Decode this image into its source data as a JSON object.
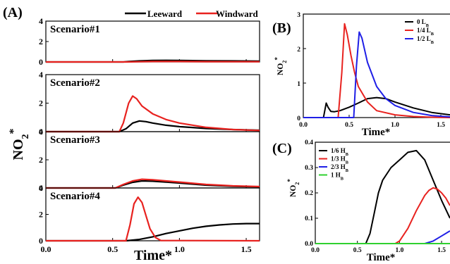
{
  "chart_data": [
    {
      "panel": "(A)",
      "type": "line",
      "ylabel": "NO",
      "ylabel_sub": "2",
      "ylabel_sup": "*",
      "xlabel": "Time*",
      "xlim": [
        0.0,
        1.6
      ],
      "xticks": [
        "0.0",
        "0.5",
        "1.0",
        "1.5"
      ],
      "legend": {
        "position": "top",
        "entries": [
          {
            "name": "Leeward",
            "color": "#000000"
          },
          {
            "name": "Windward",
            "color": "#e8221f"
          }
        ]
      },
      "subplots": [
        {
          "title": "Scenario#1",
          "ylim": [
            0,
            4
          ],
          "yticks": [
            "0",
            "2",
            "4"
          ],
          "series": [
            {
              "name": "Leeward",
              "x": [
                0.0,
                0.58,
                0.62,
                0.7,
                0.8,
                0.9,
                1.0,
                1.2,
                1.4,
                1.6
              ],
              "y": [
                0,
                0,
                0.04,
                0.1,
                0.15,
                0.16,
                0.15,
                0.12,
                0.1,
                0.08
              ]
            },
            {
              "name": "Windward",
              "x": [
                0.0,
                0.6,
                0.7,
                0.8,
                1.0,
                1.2,
                1.6
              ],
              "y": [
                0,
                0,
                0.02,
                0.04,
                0.04,
                0.03,
                0.02
              ]
            }
          ]
        },
        {
          "title": "Scenario#2",
          "ylim": [
            0,
            4
          ],
          "yticks": [
            "0",
            "2",
            "4"
          ],
          "series": [
            {
              "name": "Leeward",
              "x": [
                0.0,
                0.55,
                0.6,
                0.65,
                0.7,
                0.75,
                0.8,
                0.9,
                1.0,
                1.2,
                1.4,
                1.6
              ],
              "y": [
                0,
                0,
                0.2,
                0.6,
                0.75,
                0.7,
                0.6,
                0.45,
                0.35,
                0.22,
                0.15,
                0.1
              ]
            },
            {
              "name": "Windward",
              "x": [
                0.0,
                0.55,
                0.58,
                0.62,
                0.65,
                0.68,
                0.72,
                0.8,
                0.9,
                1.0,
                1.2,
                1.4,
                1.6
              ],
              "y": [
                0,
                0,
                0.6,
                2.0,
                2.5,
                2.3,
                1.8,
                1.25,
                0.85,
                0.6,
                0.3,
                0.15,
                0.08
              ]
            }
          ]
        },
        {
          "title": "Scenario#3",
          "ylim": [
            0,
            4
          ],
          "yticks": [
            "0",
            "2",
            "4"
          ],
          "series": [
            {
              "name": "Leeward",
              "x": [
                0.0,
                0.52,
                0.58,
                0.65,
                0.72,
                0.8,
                0.9,
                1.0,
                1.2,
                1.4,
                1.6
              ],
              "y": [
                0,
                0,
                0.2,
                0.4,
                0.5,
                0.48,
                0.42,
                0.35,
                0.2,
                0.12,
                0.08
              ]
            },
            {
              "name": "Windward",
              "x": [
                0.0,
                0.52,
                0.58,
                0.65,
                0.72,
                0.8,
                0.9,
                1.0,
                1.2,
                1.4,
                1.6
              ],
              "y": [
                0,
                0,
                0.25,
                0.5,
                0.62,
                0.58,
                0.5,
                0.42,
                0.25,
                0.15,
                0.1
              ]
            }
          ]
        },
        {
          "title": "Scenario#4",
          "ylim": [
            0,
            4
          ],
          "yticks": [
            "0",
            "2",
            "4"
          ],
          "series": [
            {
              "name": "Leeward",
              "x": [
                0.0,
                0.6,
                0.7,
                0.8,
                0.9,
                1.0,
                1.1,
                1.2,
                1.3,
                1.4,
                1.5,
                1.6
              ],
              "y": [
                0,
                0,
                0.1,
                0.3,
                0.55,
                0.75,
                0.95,
                1.1,
                1.2,
                1.27,
                1.3,
                1.3
              ]
            },
            {
              "name": "Windward",
              "x": [
                0.0,
                0.6,
                0.63,
                0.66,
                0.69,
                0.72,
                0.75,
                0.78,
                0.82,
                0.86,
                1.6
              ],
              "y": [
                0,
                0,
                1.2,
                2.8,
                3.3,
                2.9,
                1.9,
                0.9,
                0.25,
                0.02,
                0
              ]
            }
          ]
        }
      ]
    },
    {
      "panel": "(B)",
      "type": "line",
      "ylabel": "NO",
      "ylabel_sub": "2",
      "ylabel_sup": "*",
      "xlabel": "Time*",
      "xlim": [
        0.0,
        1.6
      ],
      "ylim": [
        0,
        3
      ],
      "xticks": [
        "0.0",
        "0.5",
        "1.0",
        "1.5"
      ],
      "yticks": [
        "0",
        "1",
        "2",
        "3"
      ],
      "legend": {
        "position": "top-right",
        "entries": [
          {
            "name": "0 L",
            "sub": "B",
            "color": "#000000"
          },
          {
            "name": "1/4 L",
            "sub": "B",
            "color": "#e8221f"
          },
          {
            "name": "1/2 L",
            "sub": "B",
            "color": "#1f1fe6"
          }
        ]
      },
      "series": [
        {
          "name": "0 LB",
          "x": [
            0.0,
            0.22,
            0.25,
            0.27,
            0.3,
            0.34,
            0.4,
            0.5,
            0.6,
            0.7,
            0.8,
            0.9,
            1.0,
            1.2,
            1.4,
            1.6
          ],
          "y": [
            0,
            0,
            0.42,
            0.3,
            0.18,
            0.17,
            0.2,
            0.3,
            0.42,
            0.55,
            0.58,
            0.55,
            0.45,
            0.28,
            0.15,
            0.08
          ]
        },
        {
          "name": "1/4 LB",
          "x": [
            0.0,
            0.38,
            0.42,
            0.45,
            0.48,
            0.52,
            0.56,
            0.6,
            0.7,
            0.8,
            1.0,
            1.2,
            1.4,
            1.6
          ],
          "y": [
            0,
            0,
            1.3,
            2.72,
            2.4,
            1.8,
            1.3,
            0.9,
            0.45,
            0.2,
            0.08,
            0.03,
            0.01,
            0
          ]
        },
        {
          "name": "1/2 LB",
          "x": [
            0.0,
            0.55,
            0.58,
            0.61,
            0.64,
            0.7,
            0.8,
            0.9,
            1.0,
            1.2,
            1.4,
            1.6
          ],
          "y": [
            0,
            0,
            1.5,
            2.48,
            2.3,
            1.6,
            0.9,
            0.55,
            0.35,
            0.15,
            0.06,
            0.02
          ]
        }
      ]
    },
    {
      "panel": "(C)",
      "type": "line",
      "ylabel": "NO",
      "ylabel_sub": "2",
      "ylabel_sup": "*",
      "xlabel": "Time*",
      "xlim": [
        0.0,
        1.6
      ],
      "ylim": [
        0,
        0.4
      ],
      "xticks": [
        "0.0",
        "0.5",
        "1.0",
        "1.5"
      ],
      "yticks": [
        "0.0",
        "0.1",
        "0.2",
        "0.3",
        "0.4"
      ],
      "legend": {
        "position": "top-left",
        "entries": [
          {
            "name": "1/6 H",
            "sub": "B",
            "color": "#000000"
          },
          {
            "name": "1/3 H",
            "sub": "B",
            "color": "#e8221f"
          },
          {
            "name": "2/3 H",
            "sub": "B",
            "color": "#1f1fe6"
          },
          {
            "name": "1 H",
            "sub": "B",
            "color": "#2fd12f"
          }
        ]
      },
      "series": [
        {
          "name": "1/6 HB",
          "x": [
            0.0,
            0.6,
            0.65,
            0.7,
            0.75,
            0.8,
            0.9,
            1.0,
            1.1,
            1.2,
            1.3,
            1.4,
            1.5,
            1.6
          ],
          "y": [
            0,
            0,
            0.04,
            0.12,
            0.2,
            0.25,
            0.3,
            0.33,
            0.36,
            0.367,
            0.33,
            0.25,
            0.17,
            0.1
          ]
        },
        {
          "name": "1/3 HB",
          "x": [
            0.0,
            0.95,
            1.0,
            1.1,
            1.2,
            1.3,
            1.35,
            1.4,
            1.45,
            1.5,
            1.55,
            1.6
          ],
          "y": [
            0,
            0,
            0.01,
            0.06,
            0.13,
            0.19,
            0.21,
            0.22,
            0.215,
            0.2,
            0.18,
            0.15
          ]
        },
        {
          "name": "2/3 HB",
          "x": [
            0.0,
            1.3,
            1.4,
            1.5,
            1.6
          ],
          "y": [
            0,
            0,
            0.01,
            0.03,
            0.05
          ]
        },
        {
          "name": "1 HB",
          "x": [
            0.0,
            1.6
          ],
          "y": [
            0,
            0
          ]
        }
      ]
    }
  ]
}
